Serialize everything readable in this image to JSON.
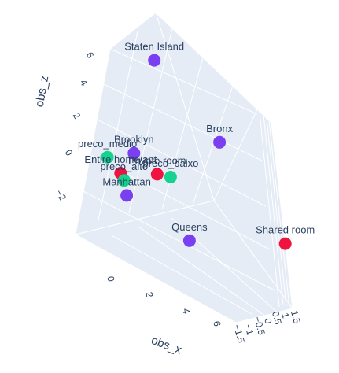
{
  "chart_data": {
    "type": "scatter3d",
    "title": "",
    "axes": {
      "x": {
        "label": "obs_x",
        "ticks": [
          "0",
          "2",
          "4",
          "6"
        ]
      },
      "y": {
        "label": "obs_y",
        "ticks": [
          "−1.5",
          "−1",
          "−0.5",
          "0",
          "0.5",
          "1",
          "1.5"
        ]
      },
      "z": {
        "label": "obs_z",
        "ticks": [
          "−2",
          "0",
          "2",
          "4",
          "6"
        ]
      }
    },
    "colors": {
      "group_a": "#636efa",
      "group_b": "#00cc96",
      "group_c": "#ef553b",
      "red": "#f0123f",
      "purple": "#7a3ff0",
      "green": "#14d38e"
    },
    "points": [
      {
        "label": "Staten Island",
        "x": 1.2,
        "y": 0.0,
        "z": 6.6,
        "color": "#7a3ff0"
      },
      {
        "label": "Bronx",
        "x": 3.6,
        "y": 0.2,
        "z": 3.3,
        "color": "#7a3ff0"
      },
      {
        "label": "Brooklyn",
        "x": 0.9,
        "y": 0.1,
        "z": 1.0,
        "color": "#7a3ff0"
      },
      {
        "label": "Private room",
        "x": 1.8,
        "y": 0.0,
        "z": 0.4,
        "color": "#f0123f"
      },
      {
        "label": "preco_baixo",
        "x": 2.3,
        "y": -0.1,
        "z": 0.6,
        "color": "#14d38e"
      },
      {
        "label": "preco_medio",
        "x": 0.1,
        "y": 0.0,
        "z": 0.3,
        "color": "#14d38e"
      },
      {
        "label": "Entire home/apt",
        "x": 0.6,
        "y": 0.0,
        "z": -0.3,
        "color": "#f0123f"
      },
      {
        "label": "preco_alto",
        "x": 0.7,
        "y": 0.1,
        "z": -0.7,
        "color": "#14d38e"
      },
      {
        "label": "Manhattan",
        "x": 0.9,
        "y": 0.0,
        "z": -1.4,
        "color": "#7a3ff0"
      },
      {
        "label": "Queens",
        "x": 3.2,
        "y": -0.1,
        "z": -2.5,
        "color": "#7a3ff0"
      },
      {
        "label": "Shared room",
        "x": 6.2,
        "y": 0.2,
        "z": -0.9,
        "color": "#f0123f"
      }
    ]
  }
}
